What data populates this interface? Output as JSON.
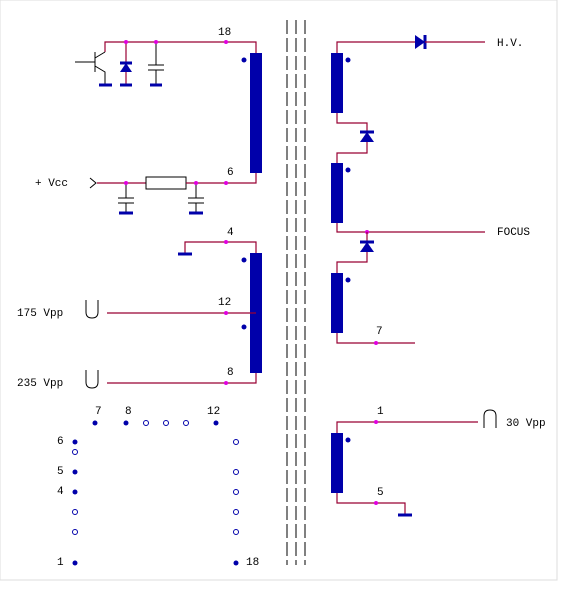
{
  "signals": [
    "+ Vcc",
    "175 Vpp",
    "235 Vpp",
    "H.V.",
    "FOCUS",
    "30 Vpp"
  ],
  "winding_pins": [
    "18",
    "6",
    "4",
    "12",
    "8",
    "7",
    "1",
    "5"
  ],
  "pinout": [
    "7",
    "8",
    "12",
    "6",
    "5",
    "4",
    "1",
    "18"
  ]
}
